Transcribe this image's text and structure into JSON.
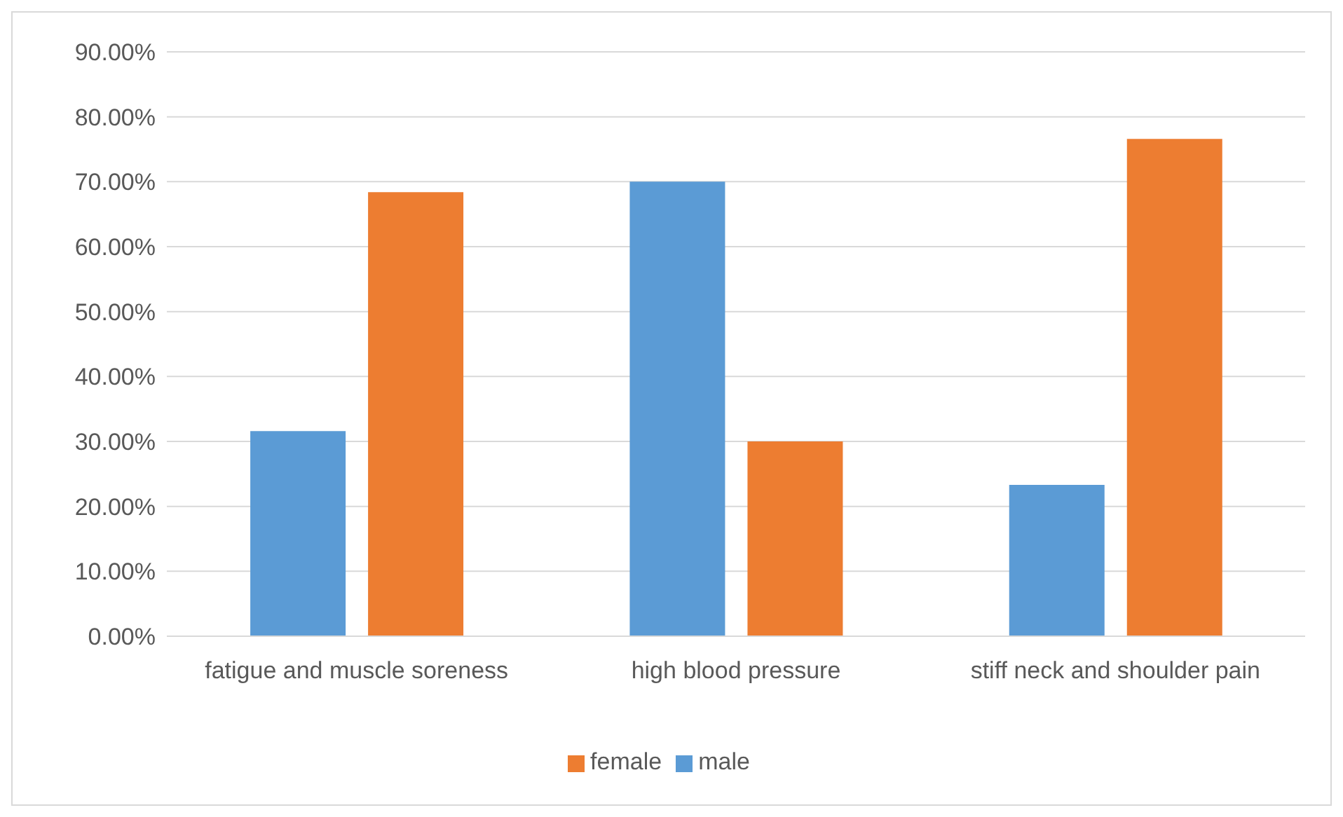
{
  "chart_data": {
    "type": "bar",
    "categories": [
      "fatigue and muscle soreness",
      "high blood pressure",
      "stiff neck and shoulder pain"
    ],
    "series": [
      {
        "name": "male",
        "color": "#5b9bd5",
        "values": [
          31.6,
          70.0,
          23.3
        ]
      },
      {
        "name": "female",
        "color": "#ed7d31",
        "values": [
          68.4,
          30.0,
          76.6
        ]
      }
    ],
    "ylim": [
      0,
      90
    ],
    "yticks": [
      {
        "value": 0,
        "label": "0.00%"
      },
      {
        "value": 10,
        "label": "10.00%"
      },
      {
        "value": 20,
        "label": "20.00%"
      },
      {
        "value": 30,
        "label": "30.00%"
      },
      {
        "value": 40,
        "label": "40.00%"
      },
      {
        "value": 50,
        "label": "50.00%"
      },
      {
        "value": 60,
        "label": "60.00%"
      },
      {
        "value": 70,
        "label": "70.00%"
      },
      {
        "value": 80,
        "label": "80.00%"
      },
      {
        "value": 90,
        "label": "90.00%"
      }
    ],
    "grid": "y",
    "legend": "bottom"
  }
}
